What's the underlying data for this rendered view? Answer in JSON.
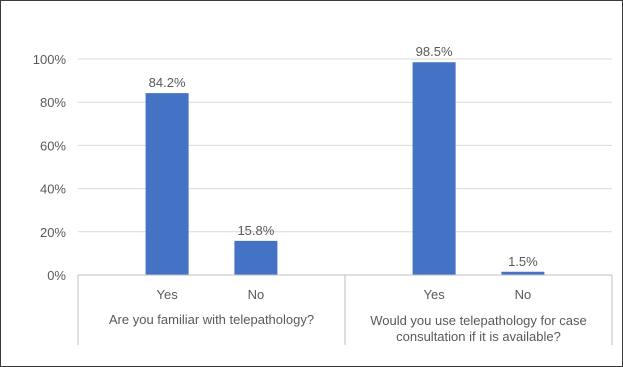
{
  "chart_data": {
    "type": "bar",
    "title": "",
    "xlabel": "",
    "ylabel": "",
    "ylim": [
      0,
      100
    ],
    "yticks": [
      0,
      20,
      40,
      60,
      80,
      100
    ],
    "ytick_labels": [
      "0%",
      "20%",
      "40%",
      "60%",
      "80%",
      "100%"
    ],
    "grid": true,
    "bar_color": "#4472c4",
    "groups": [
      {
        "label_lines": [
          "Are you familiar with telepathology?"
        ],
        "categories": [
          "Yes",
          "No"
        ],
        "values": [
          84.2,
          15.8
        ],
        "value_labels": [
          "84.2%",
          "15.8%"
        ]
      },
      {
        "label_lines": [
          "Would you use telepathology for case",
          "consultation if it is available?"
        ],
        "categories": [
          "Yes",
          "No"
        ],
        "values": [
          98.5,
          1.5
        ],
        "value_labels": [
          "98.5%",
          "1.5%"
        ]
      }
    ]
  }
}
